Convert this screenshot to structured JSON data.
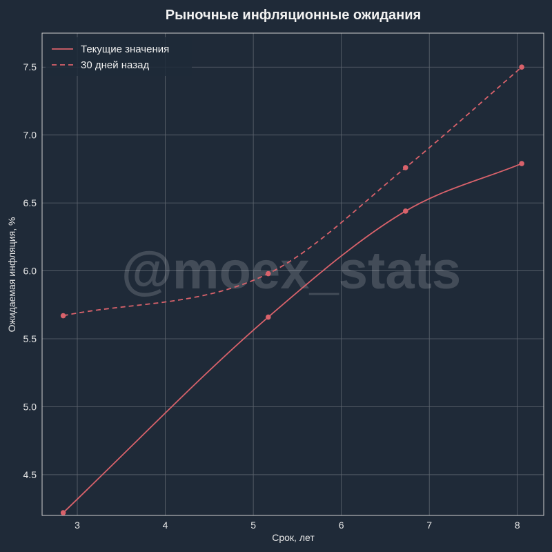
{
  "chart_data": {
    "type": "line",
    "title": "Рыночные инфляционные ожидания",
    "xlabel": "Срок, лет",
    "ylabel": "Ожидаемая инфляция, %",
    "xlim": [
      2.6,
      8.3
    ],
    "ylim": [
      4.2,
      7.75
    ],
    "xticks": [
      3,
      4,
      5,
      6,
      7,
      8
    ],
    "yticks": [
      4.5,
      5.0,
      5.5,
      6.0,
      6.5,
      7.0,
      7.5
    ],
    "xtick_labels": [
      "3",
      "4",
      "5",
      "6",
      "7",
      "8"
    ],
    "ytick_labels": [
      "4.5",
      "5.0",
      "5.5",
      "6.0",
      "6.5",
      "7.0",
      "7.5"
    ],
    "grid": true,
    "legend_position": "top-left",
    "series": [
      {
        "name": "Текущие значения",
        "style": "solid",
        "color": "#d9626b",
        "x": [
          2.84,
          5.17,
          6.73,
          8.05
        ],
        "y": [
          4.22,
          5.66,
          6.44,
          6.79
        ]
      },
      {
        "name": "30 дней назад",
        "style": "dashed",
        "color": "#d9626b",
        "x": [
          2.84,
          5.17,
          6.73,
          8.05
        ],
        "y": [
          5.67,
          5.98,
          6.76,
          7.5
        ]
      }
    ]
  },
  "watermark": "@moex_stats",
  "colors": {
    "background": "#1f2a38",
    "grid": "#5f6670",
    "axis": "#d0d0d0"
  }
}
